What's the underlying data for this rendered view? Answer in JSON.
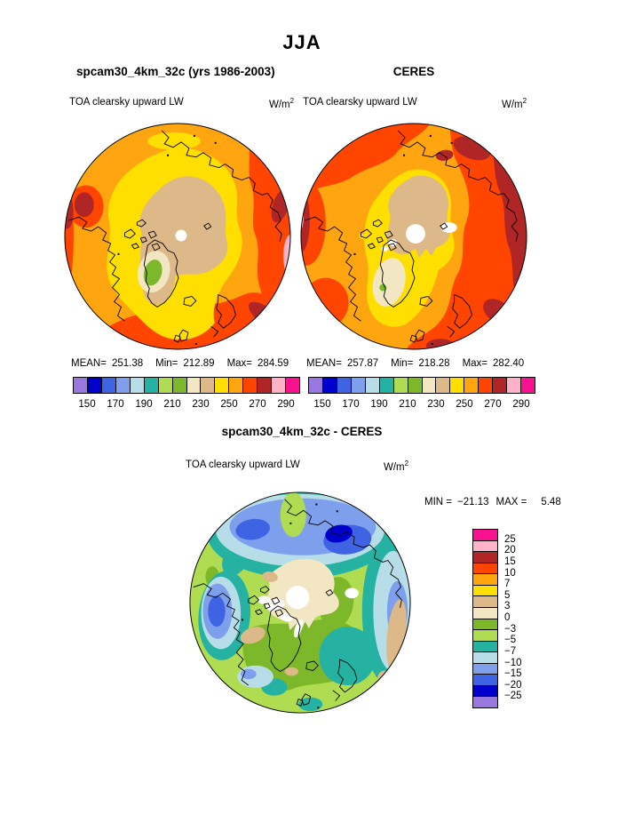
{
  "header": {
    "season_title": "JJA"
  },
  "panels": [
    {
      "title": "spcam30_4km_32c (yrs 1986-2003)",
      "field_label": "TOA clearsky upward LW",
      "units_base": "W/m",
      "units_exp": "2",
      "stats": {
        "mean_label": "MEAN=",
        "mean": "251.38",
        "min_label": "Min=",
        "min": "212.89",
        "max_label": "Max=",
        "max": "284.59"
      }
    },
    {
      "title": "CERES",
      "field_label": "TOA clearsky upward LW",
      "units_base": "W/m",
      "units_exp": "2",
      "stats": {
        "mean_label": "MEAN=",
        "mean": "257.87",
        "min_label": "Min=",
        "min": "218.28",
        "max_label": "Max=",
        "max": "282.40"
      }
    }
  ],
  "colorbar": {
    "palette": [
      "#9878DE",
      "#0000CC",
      "#3E64E4",
      "#7E9FEC",
      "#B7DEE8",
      "#25B2A3",
      "#AFDC50",
      "#7DB72A",
      "#F2E7C2",
      "#DDB888",
      "#FFDF00",
      "#FFA510",
      "#FF4500",
      "#B02626",
      "#FFB2C8",
      "#FA1190"
    ],
    "tick_labels": [
      "150",
      "170",
      "190",
      "210",
      "230",
      "250",
      "270",
      "290"
    ]
  },
  "diff": {
    "title": "spcam30_4km_32c - CERES",
    "field_label": "TOA clearsky upward LW",
    "units_base": "W/m",
    "units_exp": "2",
    "min_label": "MIN =",
    "min_value": "−21.13",
    "max_label": "MAX =",
    "max_value": "5.48",
    "colorbar_labels": [
      "25",
      "20",
      "15",
      "10",
      "7",
      "5",
      "3",
      "0",
      "−3",
      "−5",
      "−7",
      "−10",
      "−15",
      "−20",
      "−25"
    ]
  },
  "chart_data": [
    {
      "type": "heatmap",
      "subtype": "north-polar-stereographic-contour-map",
      "season": "JJA",
      "title": "spcam30_4km_32c (yrs 1986-2003)",
      "variable": "TOA clearsky upward LW",
      "units": "W/m2",
      "stats": {
        "mean": 251.38,
        "min": 212.89,
        "max": 284.59
      },
      "contour_levels": [
        150,
        160,
        170,
        180,
        190,
        200,
        210,
        220,
        230,
        240,
        250,
        260,
        270,
        280,
        290
      ],
      "colorbar_tick_labels": [
        150,
        170,
        190,
        210,
        230,
        250,
        270,
        290
      ],
      "legend_position": "bottom"
    },
    {
      "type": "heatmap",
      "subtype": "north-polar-stereographic-contour-map",
      "season": "JJA",
      "title": "CERES",
      "variable": "TOA clearsky upward LW",
      "units": "W/m2",
      "stats": {
        "mean": 257.87,
        "min": 218.28,
        "max": 282.4
      },
      "contour_levels": [
        150,
        160,
        170,
        180,
        190,
        200,
        210,
        220,
        230,
        240,
        250,
        260,
        270,
        280,
        290
      ],
      "colorbar_tick_labels": [
        150,
        170,
        190,
        210,
        230,
        250,
        270,
        290
      ],
      "legend_position": "bottom"
    },
    {
      "type": "heatmap",
      "subtype": "north-polar-stereographic-contour-map",
      "season": "JJA",
      "title": "spcam30_4km_32c - CERES",
      "variable": "TOA clearsky upward LW",
      "units": "W/m2",
      "stats": {
        "min": -21.13,
        "max": 5.48
      },
      "contour_levels": [
        -25,
        -20,
        -15,
        -10,
        -7,
        -5,
        -3,
        0,
        3,
        5,
        7,
        10,
        15,
        20,
        25
      ],
      "legend_position": "right"
    }
  ]
}
